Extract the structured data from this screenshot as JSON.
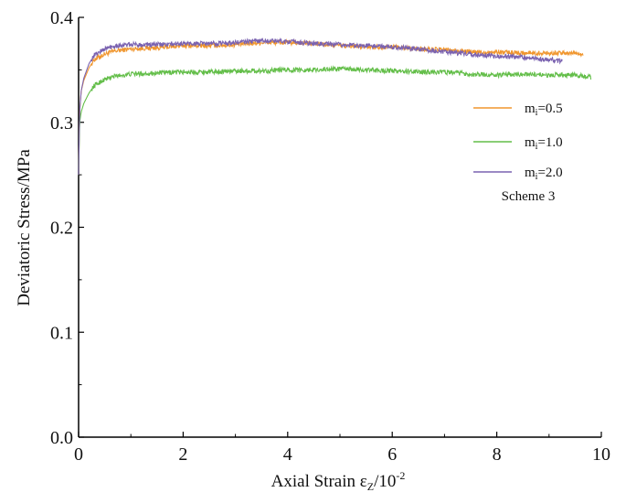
{
  "chart_data": {
    "type": "line",
    "xlabel_base": "Axial Strain ε",
    "xlabel_sub": "Z",
    "xlabel_unit": "/10",
    "xlabel_exp": "-2",
    "ylabel": "Deviatoric Stress/MPa",
    "xlim": [
      0,
      10
    ],
    "ylim": [
      0,
      0.4
    ],
    "xticks": [
      0,
      2,
      4,
      6,
      8,
      10
    ],
    "yticks": [
      0.0,
      0.1,
      0.2,
      0.3,
      0.4
    ],
    "xtick_labels": [
      "0",
      "2",
      "4",
      "6",
      "8",
      "10"
    ],
    "ytick_labels": [
      "0.0",
      "0.1",
      "0.2",
      "0.3",
      "0.4"
    ],
    "grid": false,
    "legend_position": "right",
    "annotation": "Scheme 3",
    "series": [
      {
        "name": "mi=0.5",
        "label_base": "m",
        "label_sub": "i",
        "label_rest": "=0.5",
        "color": "#f0962e",
        "x": [
          0,
          0.02,
          0.05,
          0.1,
          0.2,
          0.3,
          0.5,
          0.7,
          1.0,
          1.5,
          2.0,
          2.5,
          3.0,
          3.5,
          4.0,
          4.5,
          5.0,
          5.5,
          6.0,
          6.5,
          7.0,
          7.5,
          8.0,
          8.5,
          9.0,
          9.5,
          9.65
        ],
        "y": [
          0.25,
          0.31,
          0.33,
          0.34,
          0.352,
          0.36,
          0.365,
          0.368,
          0.37,
          0.371,
          0.373,
          0.373,
          0.374,
          0.376,
          0.376,
          0.375,
          0.373,
          0.372,
          0.372,
          0.37,
          0.369,
          0.367,
          0.367,
          0.366,
          0.366,
          0.366,
          0.365
        ]
      },
      {
        "name": "mi=1.0",
        "label_base": "m",
        "label_sub": "i",
        "label_rest": "=1.0",
        "color": "#63be49",
        "x": [
          0,
          0.02,
          0.05,
          0.1,
          0.2,
          0.3,
          0.5,
          0.7,
          1.0,
          1.5,
          2.0,
          2.5,
          3.0,
          3.5,
          4.0,
          4.5,
          5.0,
          5.5,
          6.0,
          6.5,
          7.0,
          7.5,
          8.0,
          8.5,
          9.0,
          9.5,
          9.8
        ],
        "y": [
          0.25,
          0.3,
          0.31,
          0.318,
          0.328,
          0.335,
          0.341,
          0.344,
          0.346,
          0.347,
          0.348,
          0.348,
          0.349,
          0.349,
          0.35,
          0.35,
          0.351,
          0.35,
          0.349,
          0.348,
          0.348,
          0.346,
          0.345,
          0.346,
          0.345,
          0.345,
          0.343
        ]
      },
      {
        "name": "mi=2.0",
        "label_base": "m",
        "label_sub": "i",
        "label_rest": "=2.0",
        "color": "#7a62b0",
        "x": [
          0,
          0.02,
          0.05,
          0.1,
          0.2,
          0.3,
          0.5,
          0.7,
          1.0,
          1.5,
          2.0,
          2.5,
          3.0,
          3.5,
          4.0,
          4.5,
          5.0,
          5.5,
          6.0,
          6.5,
          7.0,
          7.5,
          8.0,
          8.5,
          9.0,
          9.25
        ],
        "y": [
          0.25,
          0.31,
          0.33,
          0.342,
          0.356,
          0.364,
          0.37,
          0.373,
          0.374,
          0.374,
          0.375,
          0.375,
          0.376,
          0.378,
          0.377,
          0.375,
          0.374,
          0.373,
          0.372,
          0.37,
          0.367,
          0.365,
          0.363,
          0.362,
          0.36,
          0.358
        ]
      }
    ]
  }
}
